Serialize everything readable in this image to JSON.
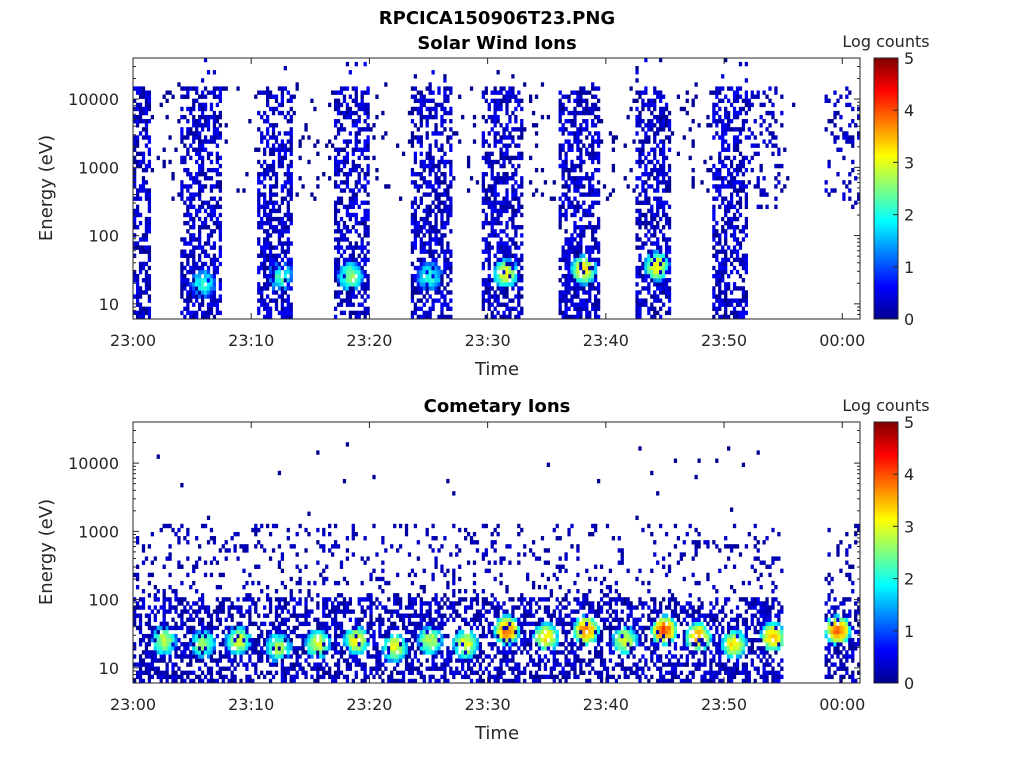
{
  "figure": {
    "title": "RPCICA150906T23.PNG"
  },
  "chart_data": [
    {
      "type": "heatmap",
      "title": "Solar Wind Ions",
      "xlabel": "Time",
      "ylabel": "Energy (eV)",
      "y_scale": "log",
      "ylim": [
        6,
        40000
      ],
      "x_ticks": [
        "23:00",
        "23:10",
        "23:20",
        "23:30",
        "23:40",
        "23:50",
        "00:00"
      ],
      "y_ticks": [
        "10",
        "100",
        "1000",
        "10000"
      ],
      "xlim_minutes": [
        0,
        61.5
      ],
      "colorbar": {
        "label": "Log counts",
        "min": 0,
        "max": 5,
        "ticks": [
          "0",
          "1",
          "2",
          "3",
          "4",
          "5"
        ],
        "colormap": "jet"
      },
      "grid": false,
      "scan_windows_minutes": [
        [
          0,
          1.5
        ],
        [
          4,
          7.5
        ],
        [
          10.5,
          13.5
        ],
        [
          17,
          20
        ],
        [
          23.5,
          27
        ],
        [
          29.5,
          33
        ],
        [
          36,
          39.5
        ],
        [
          42.5,
          45.5
        ],
        [
          49,
          52
        ]
      ],
      "sparse_windows_minutes": [
        [
          52,
          55
        ],
        [
          58.5,
          61.5
        ]
      ],
      "hotspots": [
        {
          "t": 5.8,
          "log_e": 1.3,
          "level": 2.0
        },
        {
          "t": 12.4,
          "log_e": 1.4,
          "level": 2.2
        },
        {
          "t": 18.3,
          "log_e": 1.4,
          "level": 2.6
        },
        {
          "t": 25.0,
          "log_e": 1.4,
          "level": 2.1
        },
        {
          "t": 31.4,
          "log_e": 1.45,
          "level": 3.0
        },
        {
          "t": 38.0,
          "log_e": 1.5,
          "level": 3.2
        },
        {
          "t": 44.2,
          "log_e": 1.55,
          "level": 3.1
        }
      ]
    },
    {
      "type": "heatmap",
      "title": "Cometary Ions",
      "xlabel": "Time",
      "ylabel": "Energy (eV)",
      "y_scale": "log",
      "ylim": [
        6,
        40000
      ],
      "x_ticks": [
        "23:00",
        "23:10",
        "23:20",
        "23:30",
        "23:40",
        "23:50",
        "00:00"
      ],
      "y_ticks": [
        "10",
        "100",
        "1000",
        "10000"
      ],
      "xlim_minutes": [
        0,
        61.5
      ],
      "colorbar": {
        "label": "Log counts",
        "min": 0,
        "max": 5,
        "ticks": [
          "0",
          "1",
          "2",
          "3",
          "4",
          "5"
        ],
        "colormap": "jet"
      },
      "grid": false,
      "active_until_minutes": 55,
      "active_from_minutes": 58.5,
      "hotspots": [
        {
          "t": 2.5,
          "log_e": 1.4,
          "level": 2.8
        },
        {
          "t": 5.8,
          "log_e": 1.35,
          "level": 2.6
        },
        {
          "t": 8.8,
          "log_e": 1.4,
          "level": 3.0
        },
        {
          "t": 12.2,
          "log_e": 1.3,
          "level": 2.7
        },
        {
          "t": 15.5,
          "log_e": 1.35,
          "level": 3.0
        },
        {
          "t": 18.8,
          "log_e": 1.4,
          "level": 3.1
        },
        {
          "t": 22.0,
          "log_e": 1.3,
          "level": 3.0
        },
        {
          "t": 25.0,
          "log_e": 1.4,
          "level": 2.8
        },
        {
          "t": 28.0,
          "log_e": 1.35,
          "level": 3.1
        },
        {
          "t": 31.5,
          "log_e": 1.55,
          "level": 3.9
        },
        {
          "t": 34.8,
          "log_e": 1.45,
          "level": 3.3
        },
        {
          "t": 38.2,
          "log_e": 1.55,
          "level": 3.8
        },
        {
          "t": 41.5,
          "log_e": 1.4,
          "level": 3.0
        },
        {
          "t": 44.8,
          "log_e": 1.55,
          "level": 4.1
        },
        {
          "t": 47.7,
          "log_e": 1.45,
          "level": 3.6
        },
        {
          "t": 50.7,
          "log_e": 1.35,
          "level": 3.2
        },
        {
          "t": 54.0,
          "log_e": 1.45,
          "level": 3.5
        },
        {
          "t": 59.5,
          "log_e": 1.55,
          "level": 3.9
        }
      ]
    }
  ]
}
